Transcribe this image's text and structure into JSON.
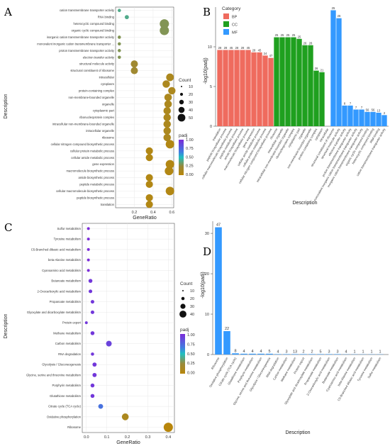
{
  "panels": {
    "a": "A",
    "b": "B",
    "c": "C",
    "d": "D"
  },
  "colors": {
    "low": "#b8860b",
    "high": "#7b2bd9",
    "bp": "#ef6b5e",
    "cc": "#1fa01f",
    "mf": "#3399ff"
  },
  "chart_data": [
    {
      "type": "scatter",
      "panel": "A",
      "xlabel": "GeneRatio",
      "ylabel": "Description",
      "xticks": [
        "0.2",
        "0.4",
        "0.6"
      ],
      "xlim": [
        0,
        0.62
      ],
      "legend_count": {
        "title": "Count",
        "values": [
          "10",
          "20",
          "30",
          "40",
          "50"
        ]
      },
      "legend_padj": {
        "title": "padj",
        "ticks": [
          "1.00",
          "0.75",
          "0.50",
          "0.25",
          "0.00"
        ]
      },
      "categories": [
        "cation transmembrane transporter activity",
        "RNA binding",
        "heterocyclic compound binding",
        "organic cyclic compound binding",
        "inorganic cation transmembrane transporter activity",
        "monovalent inorganic cation transmembrane transporter ...",
        "proton transmembrane transporter activity",
        "electron transfer activity",
        "structural molecule activity",
        "structural constituent of ribosome",
        "intracellular",
        "cytoplasm",
        "protein-containing complex",
        "non-membrane-bounded organelle",
        "organelle",
        "cytoplasmic part",
        "ribonucleoprotein complex",
        "intracellular non-membrane-bounded organelle",
        "intracellular organelle",
        "ribosome",
        "cellular nitrogen compound biosynthetic process",
        "cellular protein metabolic process",
        "cellular amide metabolic process",
        "gene expression",
        "macromolecule biosynthetic process",
        "amide biosynthetic process",
        "peptide metabolic process",
        "cellular macromolecule biosynthetic process",
        "peptide biosynthetic process",
        "translation"
      ],
      "x": [
        0.04,
        0.12,
        0.52,
        0.52,
        0.04,
        0.04,
        0.04,
        0.04,
        0.2,
        0.2,
        0.58,
        0.54,
        0.6,
        0.56,
        0.56,
        0.55,
        0.55,
        0.55,
        0.55,
        0.55,
        0.58,
        0.36,
        0.36,
        0.58,
        0.57,
        0.36,
        0.36,
        0.58,
        0.36,
        0.36
      ],
      "count": [
        2,
        5,
        48,
        48,
        2,
        2,
        2,
        2,
        25,
        25,
        30,
        28,
        27,
        28,
        28,
        28,
        28,
        28,
        28,
        28,
        40,
        25,
        25,
        40,
        40,
        25,
        25,
        40,
        25,
        25
      ],
      "padj": [
        0.4,
        0.4,
        0.3,
        0.3,
        0.3,
        0.3,
        0.3,
        0.3,
        0.2,
        0.2,
        0.1,
        0.1,
        0.1,
        0.1,
        0.1,
        0.1,
        0.1,
        0.1,
        0.1,
        0.1,
        0.05,
        0.05,
        0.05,
        0.05,
        0.05,
        0.05,
        0.05,
        0.05,
        0.05,
        0.05
      ]
    },
    {
      "type": "bar",
      "panel": "B",
      "ylabel": "-log10(padj)",
      "xlabel": "Description",
      "legend_title": "Category",
      "series": [
        {
          "name": "BP",
          "color": "#ef6b5e"
        },
        {
          "name": "CC",
          "color": "#1fa01f"
        },
        {
          "name": "MF",
          "color": "#3399ff"
        }
      ],
      "yticks": [
        "0",
        "5",
        "10"
      ],
      "ylim": [
        0,
        15
      ],
      "categories": [
        "translation",
        "peptide biosynthetic process",
        "cellular macromolecule biosynthetic process",
        "peptide metabolic process",
        "amide biosynthetic process",
        "macromolecule biosynthetic process",
        "gene expression",
        "cellular amide metabolic process",
        "cellular protein metabolic process",
        "cellular nitrogen compound biosynthetic process",
        "ribosome",
        "intracellular organelle",
        "intracellular non-membrane-bounded organelle",
        "ribonucleoprotein complex",
        "cytoplasmic part",
        "organelle",
        "non-membrane-bounded organelle",
        "protein-containing complex",
        "cytoplasm",
        "intracellular",
        "structural constituent of ribosome",
        "structural molecule activity",
        "electron transfer activity",
        "proton transmembrane transporter activity",
        "monovalent inorganic cation transmembrane transporter activity",
        "inorganic cation transmembrane transporter activity",
        "organic cyclic compound binding",
        "heterocyclic compound binding",
        "RNA binding",
        "cation transmembrane transporter activity"
      ],
      "group": [
        "BP",
        "BP",
        "BP",
        "BP",
        "BP",
        "BP",
        "BP",
        "BP",
        "BP",
        "BP",
        "CC",
        "CC",
        "CC",
        "CC",
        "CC",
        "CC",
        "CC",
        "CC",
        "CC",
        "CC",
        "MF",
        "MF",
        "MF",
        "MF",
        "MF",
        "MF",
        "MF",
        "MF",
        "MF",
        "MF"
      ],
      "values": [
        9.6,
        9.6,
        9.6,
        9.6,
        9.6,
        9.6,
        9.3,
        9.3,
        8.9,
        8.6,
        11.2,
        11.2,
        11.2,
        11.2,
        11.0,
        10.2,
        10.2,
        7.0,
        6.8,
        null,
        14.6,
        13.6,
        2.6,
        2.6,
        2.1,
        2.1,
        1.8,
        1.8,
        1.7,
        1.4
      ],
      "labels": [
        "28",
        "28",
        "45",
        "28",
        "28",
        "45",
        "28",
        "45",
        "24",
        "47",
        "25",
        "25",
        "25",
        "25",
        "25",
        "26",
        "28",
        "26",
        "21",
        null,
        "25",
        "26",
        "8",
        "7",
        "7",
        "7",
        "56",
        "56",
        "13",
        "2"
      ]
    },
    {
      "type": "scatter",
      "panel": "C",
      "xlabel": "GeneRatio",
      "ylabel": "Description",
      "xticks": [
        "0.0",
        "0.1",
        "0.2",
        "0.3",
        "0.4"
      ],
      "xlim": [
        -0.02,
        0.43
      ],
      "legend_count": {
        "title": "Count",
        "values": [
          "10",
          "20",
          "30",
          "40"
        ]
      },
      "legend_padj": {
        "title": "padj",
        "ticks": [
          "1.00",
          "0.75",
          "0.50",
          "0.25",
          "0.00"
        ]
      },
      "categories": [
        "Sulfur metabolism",
        "Tyrosine metabolism",
        "C5-Branched dibasic acid metabolism",
        "beta-Alanine metabolism",
        "Cyanoamino acid metabolism",
        "Butanoate metabolism",
        "2-Oxocarboxylic acid metabolism",
        "Propanoate metabolism",
        "Glyoxylate and dicarboxylate metabolism",
        "Protein export",
        "Methane metabolism",
        "Carbon metabolism",
        "RNA degradation",
        "Glycolysis / Gluconeogenesis",
        "Glycine, serine and threonine metabolism",
        "Porphyrin metabolism",
        "Glutathione metabolism",
        "Citrate cycle (TCA cycle)",
        "Oxidative phosphorylation",
        "Ribosome"
      ],
      "x": [
        0.01,
        0.01,
        0.01,
        0.01,
        0.01,
        0.02,
        0.02,
        0.03,
        0.03,
        0.0,
        0.03,
        0.11,
        0.03,
        0.04,
        0.04,
        0.03,
        0.03,
        0.07,
        0.19,
        0.4
      ],
      "count": [
        1,
        1,
        1,
        1,
        1,
        4,
        3,
        3,
        3,
        1,
        4,
        13,
        2,
        5,
        5,
        4,
        4,
        8,
        22,
        47
      ],
      "padj": [
        1.0,
        1.0,
        1.0,
        1.0,
        1.0,
        0.95,
        0.95,
        0.95,
        0.95,
        0.95,
        0.95,
        0.9,
        0.95,
        0.95,
        0.95,
        0.95,
        0.95,
        0.7,
        0.1,
        0.0
      ]
    },
    {
      "type": "bar",
      "panel": "D",
      "ylabel": "-log10(padj)",
      "xlabel": "Description",
      "yticks": [
        "0",
        "10",
        "20",
        "30"
      ],
      "ylim": [
        0,
        33
      ],
      "categories": [
        "Ribosome",
        "Oxidative phosphorylation",
        "Citrate cycle (TCA cycle)",
        "Glutathione metabolism",
        "Porphyrin metabolism",
        "Glycine, serine and threonine metabolism",
        "Glycolysis / Gluconeogenesis",
        "RNA degradation",
        "Carbon metabolism",
        "Methane metabolism",
        "Protein export",
        "Glyoxylate and dicarboxylate metabolism",
        "Propanoate metabolism",
        "2-Oxocarboxylic acid metabolism",
        "Butanoate metabolism",
        "Cyanoamino acid metabolism",
        "beta-Alanine metabolism",
        "C5-Branched dibasic acid metabolism",
        "Tyrosine metabolism",
        "Sulfur metabolism"
      ],
      "values": [
        31.5,
        5.8,
        0.3,
        0.2,
        0.2,
        0.2,
        0.2,
        0.1,
        0.1,
        0.1,
        0.1,
        0.1,
        0.1,
        0.1,
        0.1,
        0.05,
        0.05,
        0.05,
        0.05,
        0.05
      ],
      "labels": [
        "47",
        "22",
        "8",
        "4",
        "4",
        "4",
        "5",
        "4",
        "3",
        "13",
        "2",
        "2",
        "5",
        "3",
        "3",
        "4",
        "1",
        "1",
        "1",
        "1"
      ]
    }
  ]
}
